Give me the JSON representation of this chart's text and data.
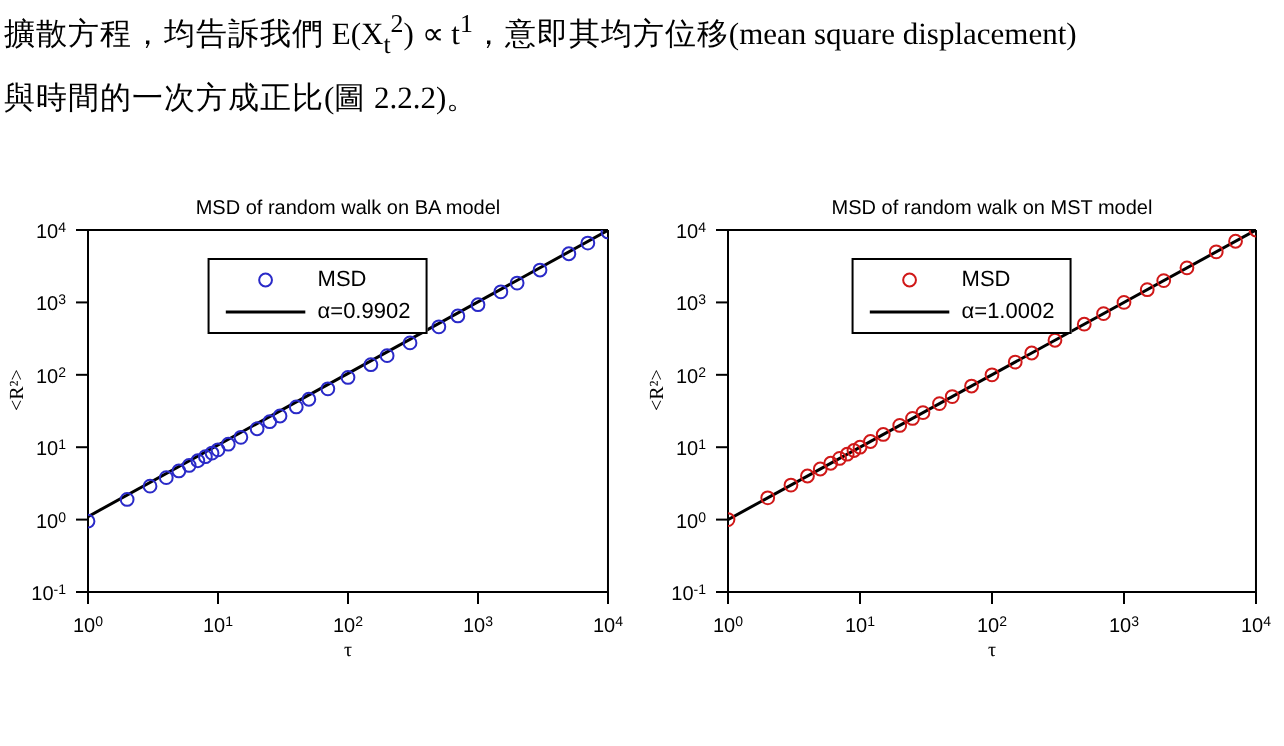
{
  "chart_data": [
    {
      "type": "scatter",
      "title": "MSD of random walk on BA model",
      "xlabel": "τ",
      "ylabel": "<R²>",
      "log": "xy",
      "grid": false,
      "legend": "top",
      "annotations": [
        "擴散方程，均告訴我們 E(X$_{t}$$^{2}$) ∝ t$^{1}$，意即其均方位移(mean square displacement)",
        "與時間的一次方成正比(圖 2.2.2)。"
      ],
      "xlim": [
        1,
        10000
      ],
      "ylim": [
        0.1,
        10000
      ],
      "xticks": [
        {
          "value": 1,
          "label": "10$^{0}$"
        },
        {
          "value": 10,
          "label": "10$^{1}$"
        },
        {
          "value": 100,
          "label": "10$^{2}$"
        },
        {
          "value": 1000,
          "label": "10$^{3}$"
        },
        {
          "value": 10000,
          "label": "10$^{4}$"
        }
      ],
      "yticks": [
        {
          "value": 0.1,
          "label": "10$^{-1}$"
        },
        {
          "value": 1,
          "label": "10$^{0}$"
        },
        {
          "value": 10,
          "label": "10$^{1}$"
        },
        {
          "value": 100,
          "label": "10$^{2}$"
        },
        {
          "value": 1000,
          "label": "10$^{3}$"
        },
        {
          "value": 10000,
          "label": "10$^{4}$"
        }
      ],
      "series": [
        {
          "name": "MSD",
          "marker": "circle",
          "color": "#2a2ac8",
          "x": [
            1,
            2,
            3,
            4,
            5,
            6,
            7,
            8,
            9,
            10,
            12,
            15,
            20,
            25,
            30,
            40,
            50,
            70,
            100,
            150,
            200,
            300,
            500,
            700,
            1000,
            1500,
            2000,
            3000,
            5000,
            7000,
            10000
          ],
          "values": [
            0.95,
            1.9,
            2.9,
            3.8,
            4.7,
            5.6,
            6.5,
            7.4,
            8.3,
            9.2,
            11,
            13.7,
            18,
            22.5,
            27,
            36,
            46,
            64,
            92,
            138,
            184,
            276,
            460,
            650,
            930,
            1400,
            1850,
            2800,
            4700,
            6600,
            9400
          ]
        },
        {
          "name": "α=0.9902",
          "type": "line",
          "marker": "none",
          "color": "#000000",
          "x": [
            1,
            10000
          ],
          "values": [
            1.1,
            9900
          ]
        }
      ]
    },
    {
      "type": "scatter",
      "title": "MSD of random walk on MST model",
      "xlabel": "τ",
      "ylabel": "<R²>",
      "log": "xy",
      "grid": false,
      "legend": "top",
      "xlim": [
        1,
        10000
      ],
      "ylim": [
        0.1,
        10000
      ],
      "xticks": [
        {
          "value": 1,
          "label": "10$^{0}$"
        },
        {
          "value": 10,
          "label": "10$^{1}$"
        },
        {
          "value": 100,
          "label": "10$^{2}$"
        },
        {
          "value": 1000,
          "label": "10$^{3}$"
        },
        {
          "value": 10000,
          "label": "10$^{4}$"
        }
      ],
      "yticks": [
        {
          "value": 0.1,
          "label": "10$^{-1}$"
        },
        {
          "value": 1,
          "label": "10$^{0}$"
        },
        {
          "value": 10,
          "label": "10$^{1}$"
        },
        {
          "value": 100,
          "label": "10$^{2}$"
        },
        {
          "value": 1000,
          "label": "10$^{3}$"
        },
        {
          "value": 10000,
          "label": "10$^{4}$"
        }
      ],
      "series": [
        {
          "name": "MSD",
          "marker": "circle",
          "color": "#d01818",
          "x": [
            1,
            2,
            3,
            4,
            5,
            6,
            7,
            8,
            9,
            10,
            12,
            15,
            20,
            25,
            30,
            40,
            50,
            70,
            100,
            150,
            200,
            300,
            500,
            700,
            1000,
            1500,
            2000,
            3000,
            5000,
            7000,
            10000
          ],
          "values": [
            1,
            2,
            3,
            4,
            5,
            6,
            7,
            8,
            9,
            10,
            12,
            15,
            20,
            25,
            30,
            40,
            50,
            70,
            100,
            150,
            200,
            300,
            500,
            700,
            1000,
            1500,
            2000,
            3000,
            5000,
            7000,
            10000
          ]
        },
        {
          "name": "α=1.0002",
          "type": "line",
          "marker": "none",
          "color": "#000000",
          "x": [
            1,
            10000
          ],
          "values": [
            1,
            10000
          ]
        }
      ]
    }
  ]
}
